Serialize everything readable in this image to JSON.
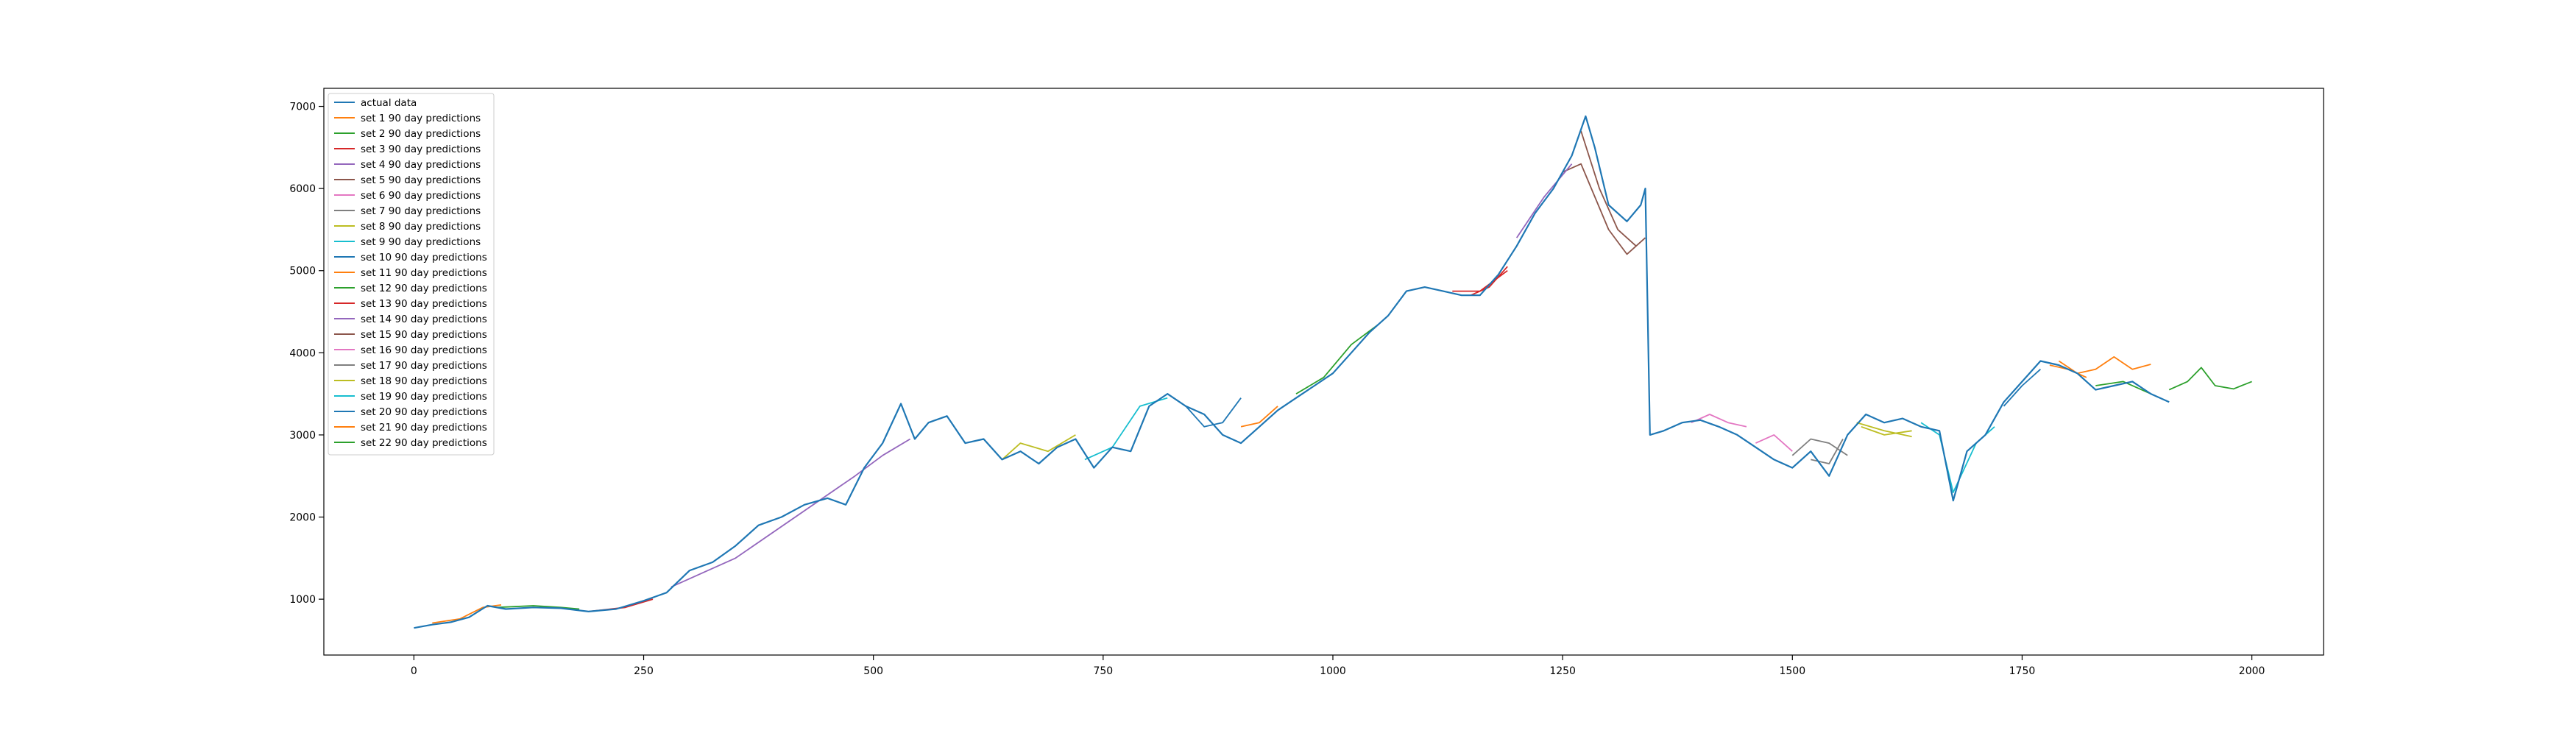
{
  "chart_data": {
    "type": "line",
    "title": "",
    "xlabel": "",
    "ylabel": "",
    "xlim": [
      -98,
      2078
    ],
    "ylim": [
      320,
      7220
    ],
    "x_ticks": [
      0,
      250,
      500,
      750,
      1000,
      1250,
      1500,
      1750,
      2000
    ],
    "y_ticks": [
      1000,
      2000,
      3000,
      4000,
      5000,
      6000,
      7000
    ],
    "grid": false,
    "legend_position": "upper-left",
    "series": [
      {
        "name": "actual data",
        "color": "#1f77b4",
        "points": [
          [
            0,
            650
          ],
          [
            20,
            690
          ],
          [
            40,
            720
          ],
          [
            60,
            780
          ],
          [
            80,
            920
          ],
          [
            100,
            880
          ],
          [
            130,
            900
          ],
          [
            160,
            890
          ],
          [
            190,
            850
          ],
          [
            220,
            880
          ],
          [
            250,
            980
          ],
          [
            275,
            1080
          ],
          [
            300,
            1350
          ],
          [
            325,
            1450
          ],
          [
            350,
            1650
          ],
          [
            375,
            1900
          ],
          [
            400,
            2000
          ],
          [
            425,
            2150
          ],
          [
            450,
            2230
          ],
          [
            470,
            2150
          ],
          [
            490,
            2600
          ],
          [
            510,
            2900
          ],
          [
            530,
            3380
          ],
          [
            545,
            2950
          ],
          [
            560,
            3150
          ],
          [
            580,
            3230
          ],
          [
            600,
            2900
          ],
          [
            620,
            2950
          ],
          [
            640,
            2700
          ],
          [
            660,
            2800
          ],
          [
            680,
            2650
          ],
          [
            700,
            2850
          ],
          [
            720,
            2950
          ],
          [
            740,
            2600
          ],
          [
            760,
            2850
          ],
          [
            780,
            2800
          ],
          [
            800,
            3350
          ],
          [
            820,
            3500
          ],
          [
            840,
            3350
          ],
          [
            860,
            3250
          ],
          [
            880,
            3000
          ],
          [
            900,
            2900
          ],
          [
            920,
            3100
          ],
          [
            940,
            3300
          ],
          [
            960,
            3450
          ],
          [
            980,
            3600
          ],
          [
            1000,
            3750
          ],
          [
            1020,
            4000
          ],
          [
            1040,
            4250
          ],
          [
            1060,
            4450
          ],
          [
            1080,
            4750
          ],
          [
            1100,
            4800
          ],
          [
            1120,
            4750
          ],
          [
            1140,
            4700
          ],
          [
            1160,
            4700
          ],
          [
            1180,
            4950
          ],
          [
            1200,
            5300
          ],
          [
            1220,
            5700
          ],
          [
            1240,
            6000
          ],
          [
            1260,
            6400
          ],
          [
            1275,
            6880
          ],
          [
            1285,
            6500
          ],
          [
            1300,
            5800
          ],
          [
            1320,
            5600
          ],
          [
            1335,
            5800
          ],
          [
            1340,
            6000
          ],
          [
            1345,
            3000
          ],
          [
            1360,
            3050
          ],
          [
            1380,
            3150
          ],
          [
            1400,
            3180
          ],
          [
            1420,
            3100
          ],
          [
            1440,
            3000
          ],
          [
            1460,
            2850
          ],
          [
            1480,
            2700
          ],
          [
            1500,
            2600
          ],
          [
            1520,
            2800
          ],
          [
            1540,
            2500
          ],
          [
            1560,
            3000
          ],
          [
            1580,
            3250
          ],
          [
            1600,
            3150
          ],
          [
            1620,
            3200
          ],
          [
            1640,
            3100
          ],
          [
            1660,
            3050
          ],
          [
            1675,
            2200
          ],
          [
            1690,
            2800
          ],
          [
            1710,
            3000
          ],
          [
            1730,
            3400
          ],
          [
            1750,
            3650
          ],
          [
            1770,
            3900
          ],
          [
            1790,
            3850
          ],
          [
            1810,
            3750
          ],
          [
            1830,
            3550
          ],
          [
            1850,
            3600
          ],
          [
            1870,
            3650
          ],
          [
            1890,
            3500
          ],
          [
            1910,
            3400
          ]
        ]
      },
      {
        "name": "set 1 90 day predictions",
        "color": "#ff7f0e",
        "points": [
          [
            20,
            710
          ],
          [
            50,
            760
          ],
          [
            75,
            900
          ],
          [
            95,
            930
          ],
          [
            1790,
            3900
          ],
          [
            1810,
            3750
          ],
          [
            1830,
            3800
          ],
          [
            1850,
            3950
          ],
          [
            1870,
            3800
          ],
          [
            1890,
            3860
          ]
        ]
      },
      {
        "name": "set 2 90 day predictions",
        "color": "#2ca02c",
        "points": [
          [
            90,
            900
          ],
          [
            130,
            920
          ],
          [
            160,
            900
          ],
          [
            180,
            880
          ],
          [
            1910,
            3550
          ],
          [
            1930,
            3650
          ],
          [
            1945,
            3820
          ],
          [
            1960,
            3600
          ],
          [
            1980,
            3560
          ],
          [
            2000,
            3650
          ]
        ]
      },
      {
        "name": "set 3 90 day predictions",
        "color": "#d62728",
        "points": [
          [
            190,
            850
          ],
          [
            230,
            900
          ],
          [
            260,
            1000
          ],
          [
            1130,
            4750
          ],
          [
            1160,
            4750
          ],
          [
            1190,
            5000
          ]
        ]
      },
      {
        "name": "set 4 90 day predictions",
        "color": "#9467bd",
        "points": [
          [
            280,
            1150
          ],
          [
            320,
            1350
          ],
          [
            350,
            1500
          ],
          [
            480,
            2500
          ],
          [
            510,
            2750
          ],
          [
            540,
            2950
          ]
        ]
      },
      {
        "name": "set 5 90 day predictions",
        "color": "#8c564b",
        "points": [
          [
            1250,
            6200
          ],
          [
            1270,
            6300
          ],
          [
            1300,
            5500
          ],
          [
            1320,
            5200
          ],
          [
            1340,
            5400
          ]
        ]
      },
      {
        "name": "set 6 90 day predictions",
        "color": "#e377c2",
        "points": [
          [
            1390,
            3150
          ],
          [
            1410,
            3250
          ],
          [
            1430,
            3150
          ],
          [
            1450,
            3100
          ]
        ]
      },
      {
        "name": "set 7 90 day predictions",
        "color": "#7f7f7f",
        "points": [
          [
            1500,
            2750
          ],
          [
            1520,
            2950
          ],
          [
            1540,
            2900
          ],
          [
            1560,
            2750
          ]
        ]
      },
      {
        "name": "set 8 90 day predictions",
        "color": "#bcbd22",
        "points": [
          [
            640,
            2700
          ],
          [
            660,
            2900
          ],
          [
            690,
            2800
          ],
          [
            720,
            3000
          ],
          [
            1570,
            3150
          ],
          [
            1600,
            3050
          ],
          [
            1630,
            2980
          ]
        ]
      },
      {
        "name": "set 9 90 day predictions",
        "color": "#17becf",
        "points": [
          [
            730,
            2700
          ],
          [
            760,
            2850
          ],
          [
            790,
            3350
          ],
          [
            820,
            3450
          ]
        ]
      },
      {
        "name": "set 10 90 day predictions",
        "color": "#1f77b4",
        "points": [
          [
            840,
            3350
          ],
          [
            860,
            3100
          ],
          [
            880,
            3150
          ],
          [
            900,
            3450
          ]
        ]
      },
      {
        "name": "set 11 90 day predictions",
        "color": "#ff7f0e",
        "points": [
          [
            900,
            3100
          ],
          [
            920,
            3150
          ],
          [
            940,
            3350
          ]
        ]
      },
      {
        "name": "set 12 90 day predictions",
        "color": "#2ca02c",
        "points": [
          [
            960,
            3500
          ],
          [
            990,
            3700
          ],
          [
            1020,
            4100
          ],
          [
            1050,
            4350
          ]
        ]
      },
      {
        "name": "set 13 90 day predictions",
        "color": "#d62728",
        "points": [
          [
            1150,
            4700
          ],
          [
            1170,
            4800
          ],
          [
            1190,
            5050
          ]
        ]
      },
      {
        "name": "set 14 90 day predictions",
        "color": "#9467bd",
        "points": [
          [
            1200,
            5400
          ],
          [
            1230,
            5900
          ],
          [
            1260,
            6300
          ]
        ]
      },
      {
        "name": "set 15 90 day predictions",
        "color": "#8c564b",
        "points": [
          [
            1270,
            6700
          ],
          [
            1290,
            6000
          ],
          [
            1310,
            5500
          ],
          [
            1330,
            5300
          ]
        ]
      },
      {
        "name": "set 16 90 day predictions",
        "color": "#e377c2",
        "points": [
          [
            1460,
            2900
          ],
          [
            1480,
            3000
          ],
          [
            1500,
            2800
          ]
        ]
      },
      {
        "name": "set 17 90 day predictions",
        "color": "#7f7f7f",
        "points": [
          [
            1520,
            2700
          ],
          [
            1540,
            2650
          ],
          [
            1555,
            2950
          ]
        ]
      },
      {
        "name": "set 18 90 day predictions",
        "color": "#bcbd22",
        "points": [
          [
            1575,
            3100
          ],
          [
            1600,
            3000
          ],
          [
            1630,
            3050
          ]
        ]
      },
      {
        "name": "set 19 90 day predictions",
        "color": "#17becf",
        "points": [
          [
            1640,
            3150
          ],
          [
            1660,
            3000
          ],
          [
            1675,
            2300
          ],
          [
            1700,
            2900
          ],
          [
            1720,
            3100
          ]
        ]
      },
      {
        "name": "set 20 90 day predictions",
        "color": "#1f77b4",
        "points": [
          [
            1730,
            3350
          ],
          [
            1750,
            3600
          ],
          [
            1770,
            3800
          ]
        ]
      },
      {
        "name": "set 21 90 day predictions",
        "color": "#ff7f0e",
        "points": [
          [
            1780,
            3850
          ],
          [
            1800,
            3800
          ],
          [
            1820,
            3700
          ]
        ]
      },
      {
        "name": "set 22 90 day predictions",
        "color": "#2ca02c",
        "points": [
          [
            1830,
            3600
          ],
          [
            1860,
            3650
          ],
          [
            1890,
            3500
          ]
        ]
      }
    ]
  }
}
